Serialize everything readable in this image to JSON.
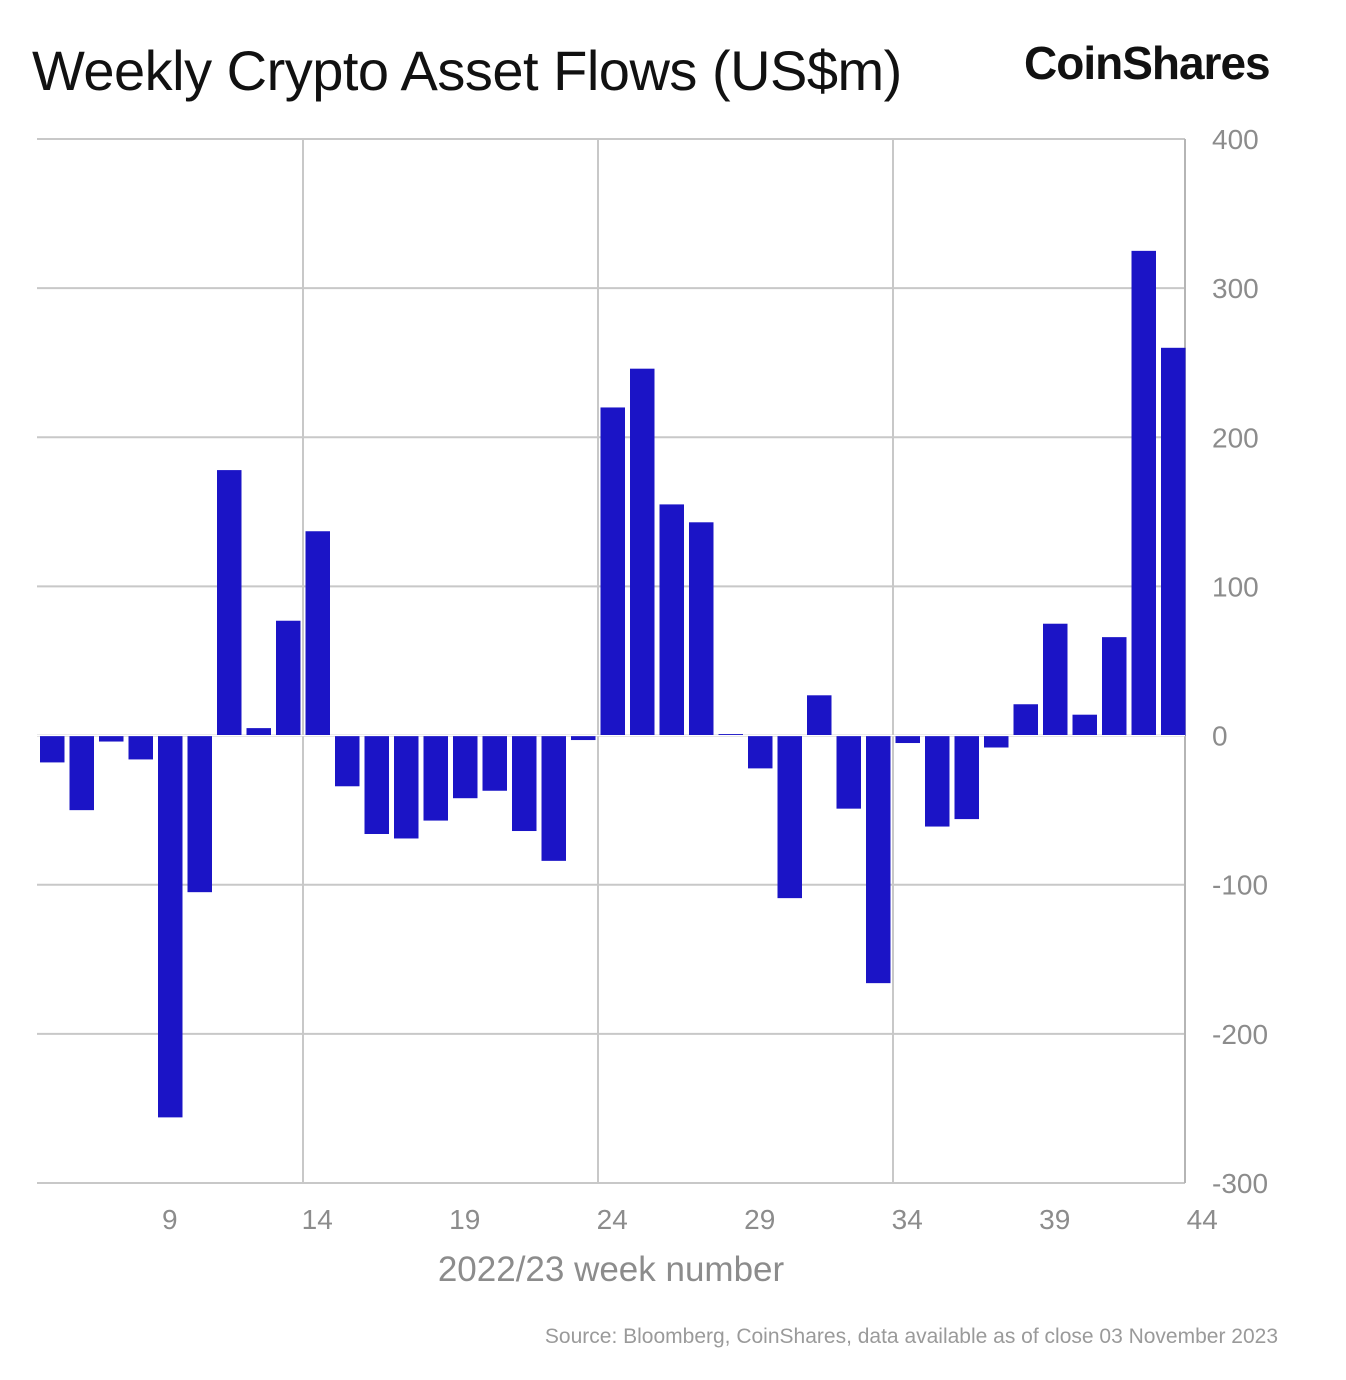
{
  "title": "Weekly Crypto Asset Flows (US$m)",
  "logo_text": "CoinShares",
  "source": "Source: Bloomberg, CoinShares, data available as of close 03 November 2023",
  "colors": {
    "bar": "#1b14c6",
    "grid": "#c8c8c8",
    "tick_text": "#8c8c8c",
    "axis_line": "#b5b5b5"
  },
  "chart_data": {
    "type": "bar",
    "title": "Weekly Crypto Asset Flows (US$m)",
    "xlabel": "2022/23 week number",
    "ylabel": "",
    "y_axis_side": "right",
    "ylim": [
      -300,
      400
    ],
    "yticks": [
      400,
      300,
      200,
      100,
      0,
      -100,
      -200,
      -300
    ],
    "x_tick_weeks": [
      9,
      14,
      19,
      24,
      29,
      34,
      39,
      44
    ],
    "categories": [
      5,
      6,
      7,
      8,
      9,
      10,
      11,
      12,
      13,
      14,
      15,
      16,
      17,
      18,
      19,
      20,
      21,
      22,
      23,
      24,
      25,
      26,
      27,
      28,
      29,
      30,
      31,
      32,
      33,
      34,
      35,
      36,
      37,
      38,
      39,
      40,
      41,
      42,
      43,
      44
    ],
    "values": [
      -18,
      -50,
      -4,
      -16,
      -256,
      -105,
      178,
      5,
      77,
      137,
      -34,
      -66,
      -69,
      -57,
      -42,
      -37,
      -64,
      -84,
      -3,
      220,
      246,
      155,
      143,
      1,
      -22,
      -109,
      27,
      -49,
      -166,
      -5,
      -61,
      -56,
      -8,
      21,
      75,
      14,
      66,
      325,
      260,
      0
    ],
    "grid": true,
    "vertical_grid_weeks": [
      14,
      24,
      34,
      44
    ]
  }
}
